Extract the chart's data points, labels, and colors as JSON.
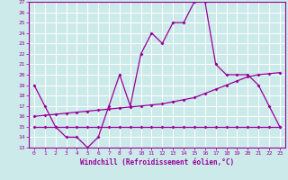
{
  "xlabel": "Windchill (Refroidissement éolien,°C)",
  "bg_color": "#cceaea",
  "grid_color": "#aadddd",
  "line_color": "#990099",
  "xlim": [
    -0.5,
    23.5
  ],
  "ylim": [
    13,
    27
  ],
  "xticks": [
    0,
    1,
    2,
    3,
    4,
    5,
    6,
    7,
    8,
    9,
    10,
    11,
    12,
    13,
    14,
    15,
    16,
    17,
    18,
    19,
    20,
    21,
    22,
    23
  ],
  "yticks": [
    13,
    14,
    15,
    16,
    17,
    18,
    19,
    20,
    21,
    22,
    23,
    24,
    25,
    26,
    27
  ],
  "line1_x": [
    0,
    1,
    2,
    3,
    4,
    5,
    6,
    7,
    8,
    9,
    10,
    11,
    12,
    13,
    14,
    15,
    16,
    17,
    18,
    19,
    20,
    21,
    22,
    23
  ],
  "line1_y": [
    19,
    17,
    15,
    14,
    14,
    13,
    14,
    17,
    20,
    17,
    22,
    24,
    23,
    25,
    25,
    27,
    27,
    21,
    20,
    20,
    20,
    19,
    17,
    15
  ],
  "line2_x": [
    0,
    1,
    2,
    3,
    4,
    5,
    6,
    7,
    8,
    9,
    10,
    11,
    12,
    13,
    14,
    15,
    16,
    17,
    18,
    19,
    20,
    21,
    22,
    23
  ],
  "line2_y": [
    16.0,
    16.1,
    16.2,
    16.3,
    16.4,
    16.5,
    16.6,
    16.7,
    16.8,
    16.9,
    17.0,
    17.1,
    17.2,
    17.4,
    17.6,
    17.8,
    18.2,
    18.6,
    19.0,
    19.4,
    19.8,
    20.0,
    20.1,
    20.2
  ],
  "line3_x": [
    0,
    1,
    2,
    3,
    4,
    5,
    6,
    7,
    8,
    9,
    10,
    11,
    12,
    13,
    14,
    15,
    16,
    17,
    18,
    19,
    20,
    21,
    22,
    23
  ],
  "line3_y": [
    15.0,
    15.0,
    15.0,
    15.0,
    15.0,
    15.0,
    15.0,
    15.0,
    15.0,
    15.0,
    15.0,
    15.0,
    15.0,
    15.0,
    15.0,
    15.0,
    15.0,
    15.0,
    15.0,
    15.0,
    15.0,
    15.0,
    15.0,
    15.0
  ]
}
